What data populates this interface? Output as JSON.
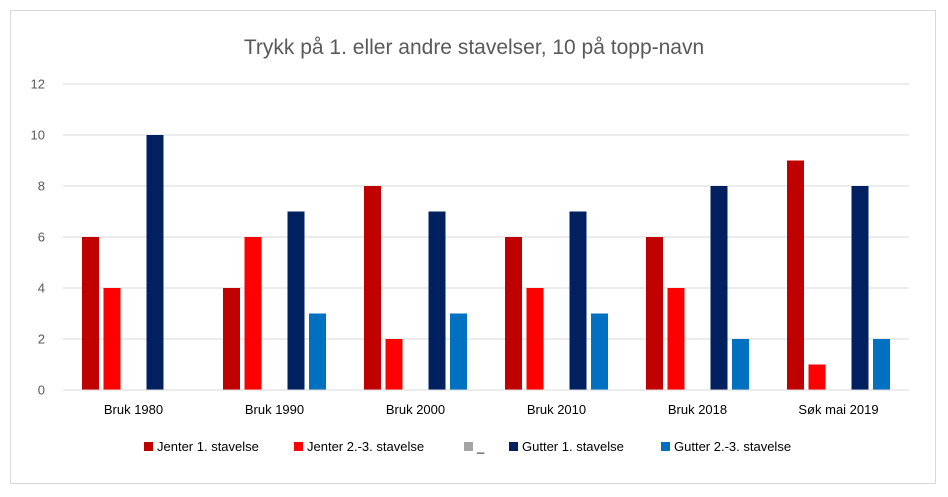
{
  "chart_data": {
    "type": "bar",
    "title": "Trykk på 1. eller andre stavelser, 10 på topp-navn",
    "xlabel": "",
    "ylabel": "",
    "ylim": [
      0,
      12
    ],
    "yticks": [
      "0",
      "2",
      "4",
      "6",
      "8",
      "10",
      "12"
    ],
    "grid": true,
    "legend_position": "bottom",
    "categories": [
      "Bruk 1980",
      "Bruk 1990",
      "Bruk 2000",
      "Bruk 2010",
      "Bruk 2018",
      "Søk mai 2019"
    ],
    "series": [
      {
        "name": "Jenter 1. stavelse",
        "color": "#c00000",
        "values": [
          6,
          4,
          8,
          6,
          6,
          9
        ]
      },
      {
        "name": "Jenter 2.-3. stavelse",
        "color": "#ff0000",
        "values": [
          4,
          6,
          2,
          4,
          4,
          1
        ]
      },
      {
        "name": "_",
        "color": "#a5a5a5",
        "values": [
          0,
          0,
          0,
          0,
          0,
          0
        ]
      },
      {
        "name": "Gutter 1. stavelse",
        "color": "#002060",
        "values": [
          10,
          7,
          7,
          7,
          8,
          8
        ]
      },
      {
        "name": "Gutter 2.-3. stavelse",
        "color": "#0070c0",
        "values": [
          0,
          3,
          3,
          3,
          2,
          2
        ]
      }
    ]
  }
}
